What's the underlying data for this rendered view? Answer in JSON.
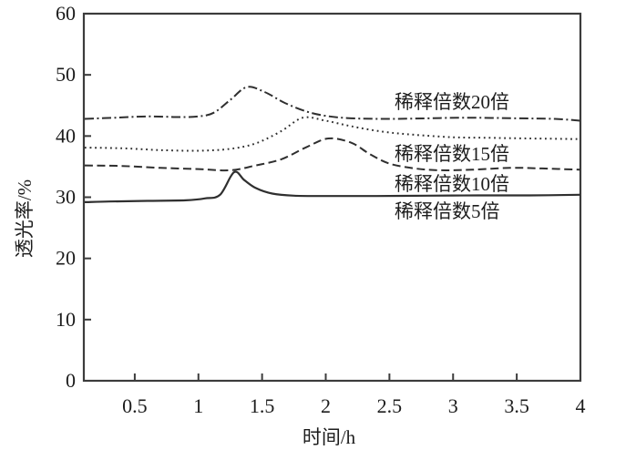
{
  "figure": {
    "background": "#ffffff",
    "line_color": "#2f2f2f",
    "axis_color": "#3c3c3c",
    "text_color": "#1c1c1c"
  },
  "chart_data": {
    "type": "line",
    "title": "",
    "xlabel": "时间/h",
    "ylabel": "透光率/%",
    "xlim": [
      0.1,
      4
    ],
    "ylim": [
      0,
      60
    ],
    "x_ticks": [
      0.5,
      1,
      1.5,
      2,
      2.5,
      3,
      3.5,
      4
    ],
    "y_ticks": [
      0,
      10,
      20,
      30,
      40,
      50,
      60
    ],
    "grid": false,
    "legend_position": "inline-right-annotations",
    "series": [
      {
        "name": "稀释倍数20倍",
        "line_style": "dash-dot",
        "label_x": 2.54,
        "label_y": 44.5,
        "points": [
          [
            0.107,
            42.8
          ],
          [
            0.35,
            43.0
          ],
          [
            0.6,
            43.2
          ],
          [
            0.85,
            43.1
          ],
          [
            1.0,
            43.2
          ],
          [
            1.12,
            43.8
          ],
          [
            1.25,
            45.9
          ],
          [
            1.38,
            48.0
          ],
          [
            1.52,
            47.2
          ],
          [
            1.68,
            45.4
          ],
          [
            1.85,
            44.0
          ],
          [
            2.0,
            43.3
          ],
          [
            2.2,
            42.9
          ],
          [
            2.5,
            42.8
          ],
          [
            2.8,
            42.9
          ],
          [
            3.1,
            43.0
          ],
          [
            3.5,
            42.9
          ],
          [
            3.8,
            42.8
          ],
          [
            4.0,
            42.5
          ]
        ]
      },
      {
        "name": "稀释倍数15倍",
        "line_style": "dotted",
        "label_x": 2.54,
        "label_y": 36.0,
        "points": [
          [
            0.107,
            38.1
          ],
          [
            0.4,
            38.0
          ],
          [
            0.7,
            37.7
          ],
          [
            1.0,
            37.6
          ],
          [
            1.25,
            37.9
          ],
          [
            1.45,
            38.8
          ],
          [
            1.65,
            40.8
          ],
          [
            1.82,
            43.0
          ],
          [
            2.0,
            42.5
          ],
          [
            2.2,
            41.6
          ],
          [
            2.45,
            40.7
          ],
          [
            2.7,
            40.2
          ],
          [
            3.0,
            39.8
          ],
          [
            3.3,
            39.7
          ],
          [
            3.6,
            39.6
          ],
          [
            4.0,
            39.5
          ]
        ]
      },
      {
        "name": "稀释倍数10倍",
        "line_style": "dashed",
        "label_x": 2.54,
        "label_y": 31.1,
        "points": [
          [
            0.107,
            35.2
          ],
          [
            0.4,
            35.1
          ],
          [
            0.7,
            34.8
          ],
          [
            1.0,
            34.6
          ],
          [
            1.25,
            34.4
          ],
          [
            1.45,
            35.2
          ],
          [
            1.65,
            36.2
          ],
          [
            1.85,
            38.2
          ],
          [
            2.02,
            39.6
          ],
          [
            2.2,
            38.9
          ],
          [
            2.35,
            37.0
          ],
          [
            2.5,
            35.5
          ],
          [
            2.7,
            34.7
          ],
          [
            2.9,
            34.4
          ],
          [
            3.15,
            34.5
          ],
          [
            3.45,
            34.8
          ],
          [
            3.7,
            34.7
          ],
          [
            4.0,
            34.5
          ]
        ]
      },
      {
        "name": "稀释倍数5倍",
        "line_style": "solid",
        "label_x": 2.54,
        "label_y": 26.65,
        "points": [
          [
            0.107,
            29.2
          ],
          [
            0.3,
            29.3
          ],
          [
            0.6,
            29.4
          ],
          [
            0.9,
            29.5
          ],
          [
            1.05,
            29.8
          ],
          [
            1.17,
            30.4
          ],
          [
            1.28,
            34.1
          ],
          [
            1.36,
            32.8
          ],
          [
            1.45,
            31.5
          ],
          [
            1.58,
            30.6
          ],
          [
            1.75,
            30.25
          ],
          [
            2.0,
            30.2
          ],
          [
            2.4,
            30.2
          ],
          [
            2.8,
            30.25
          ],
          [
            3.2,
            30.3
          ],
          [
            3.6,
            30.3
          ],
          [
            4.0,
            30.4
          ]
        ]
      }
    ]
  }
}
